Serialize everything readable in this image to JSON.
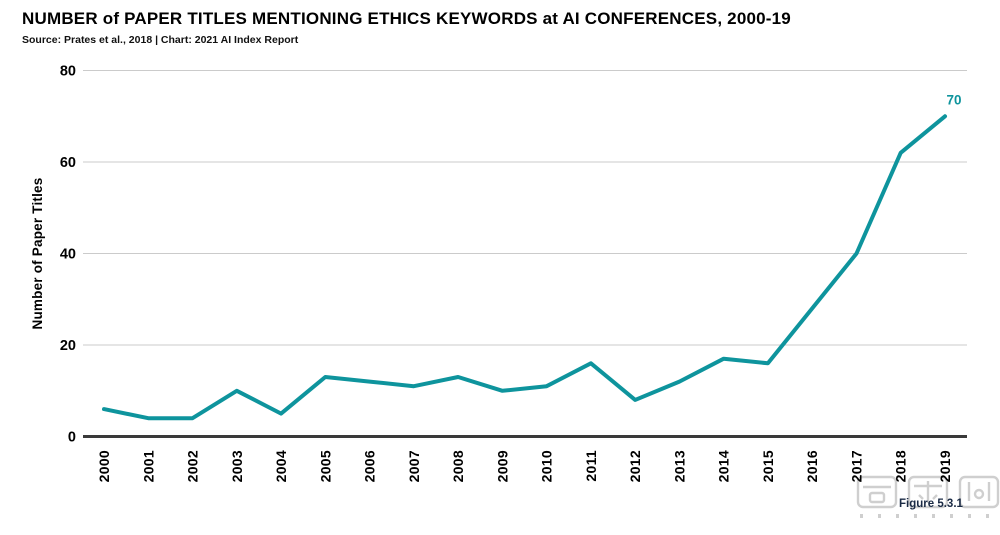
{
  "page": {
    "figure_label": "Figure 5.3.1"
  },
  "chart_data": {
    "type": "line",
    "title": "NUMBER of PAPER TITLES MENTIONING ETHICS KEYWORDS at AI CONFERENCES, 2000-19",
    "subtitle": "Source: Prates et al., 2018 | Chart: 2021 AI Index Report",
    "xlabel": "",
    "ylabel": "Number of Paper Titles",
    "x": [
      2000,
      2001,
      2002,
      2003,
      2004,
      2005,
      2006,
      2007,
      2008,
      2009,
      2010,
      2011,
      2012,
      2013,
      2014,
      2015,
      2016,
      2017,
      2018,
      2019
    ],
    "series": [
      {
        "name": "Number of Paper Titles",
        "values": [
          6,
          4,
          4,
          10,
          5,
          13,
          12,
          11,
          13,
          10,
          11,
          16,
          8,
          12,
          17,
          16,
          28,
          40,
          62,
          70
        ]
      }
    ],
    "ylim": [
      0,
      80
    ],
    "yticks": [
      0,
      20,
      40,
      60,
      80
    ],
    "grid": true,
    "legend_position": "none",
    "end_point_label": "70"
  },
  "colors": {
    "line": "#0e949d",
    "end_label": "#0e949d",
    "grid": "#cbcbcb",
    "axis": "#3a3a3a",
    "text": "#000000",
    "figure_label": "#1b2b45",
    "watermark": "#c7c7c7"
  }
}
